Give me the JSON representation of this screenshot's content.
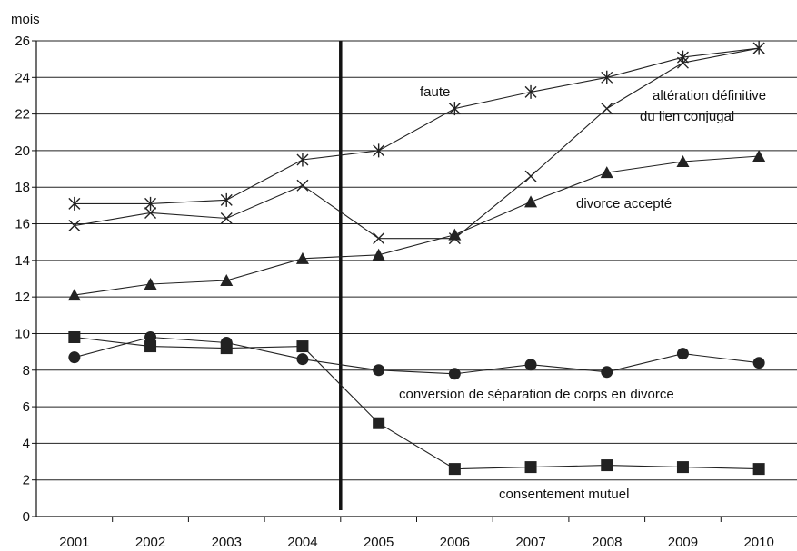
{
  "chart_data": {
    "type": "line",
    "ylabel": "mois",
    "xlabel": "",
    "ylim": [
      0,
      26
    ],
    "yticks": [
      0,
      2,
      4,
      6,
      8,
      10,
      12,
      14,
      16,
      18,
      20,
      22,
      24,
      26
    ],
    "categories": [
      "2001",
      "2002",
      "2003",
      "2004",
      "2005",
      "2006",
      "2007",
      "2008",
      "2009",
      "2010"
    ],
    "grid": "horizontal",
    "vertical_marker_between": [
      "2004",
      "2005"
    ],
    "series": [
      {
        "name": "faute",
        "marker": "asterisk",
        "values": [
          17.1,
          17.1,
          17.3,
          19.5,
          20.0,
          22.3,
          23.2,
          24.0,
          25.1,
          25.6
        ]
      },
      {
        "name": "altération définitive du lien conjugal",
        "marker": "cross",
        "values": [
          15.9,
          16.6,
          16.3,
          18.1,
          15.2,
          15.2,
          18.6,
          22.3,
          24.8,
          25.6
        ]
      },
      {
        "name": "divorce accepté",
        "marker": "triangle",
        "values": [
          12.1,
          12.7,
          12.9,
          14.1,
          14.3,
          15.4,
          17.2,
          18.8,
          19.4,
          19.7
        ]
      },
      {
        "name": "conversion de séparation de corps en divorce",
        "marker": "circle",
        "values": [
          8.7,
          9.8,
          9.5,
          8.6,
          8.0,
          7.8,
          8.3,
          7.9,
          8.9,
          8.4
        ]
      },
      {
        "name": "consentement mutuel",
        "marker": "square",
        "values": [
          9.8,
          9.3,
          9.2,
          9.3,
          5.1,
          2.6,
          2.7,
          2.8,
          2.7,
          2.6
        ]
      }
    ],
    "annotations": [
      {
        "text": "faute"
      },
      {
        "text": "altération définitive"
      },
      {
        "text": "du lien conjugal"
      },
      {
        "text": "divorce accepté"
      },
      {
        "text": "conversion de séparation de corps en divorce"
      },
      {
        "text": "consentement mutuel"
      }
    ],
    "colors": {
      "line": "#222222",
      "grid": "#222222",
      "axis": "#111111"
    }
  }
}
